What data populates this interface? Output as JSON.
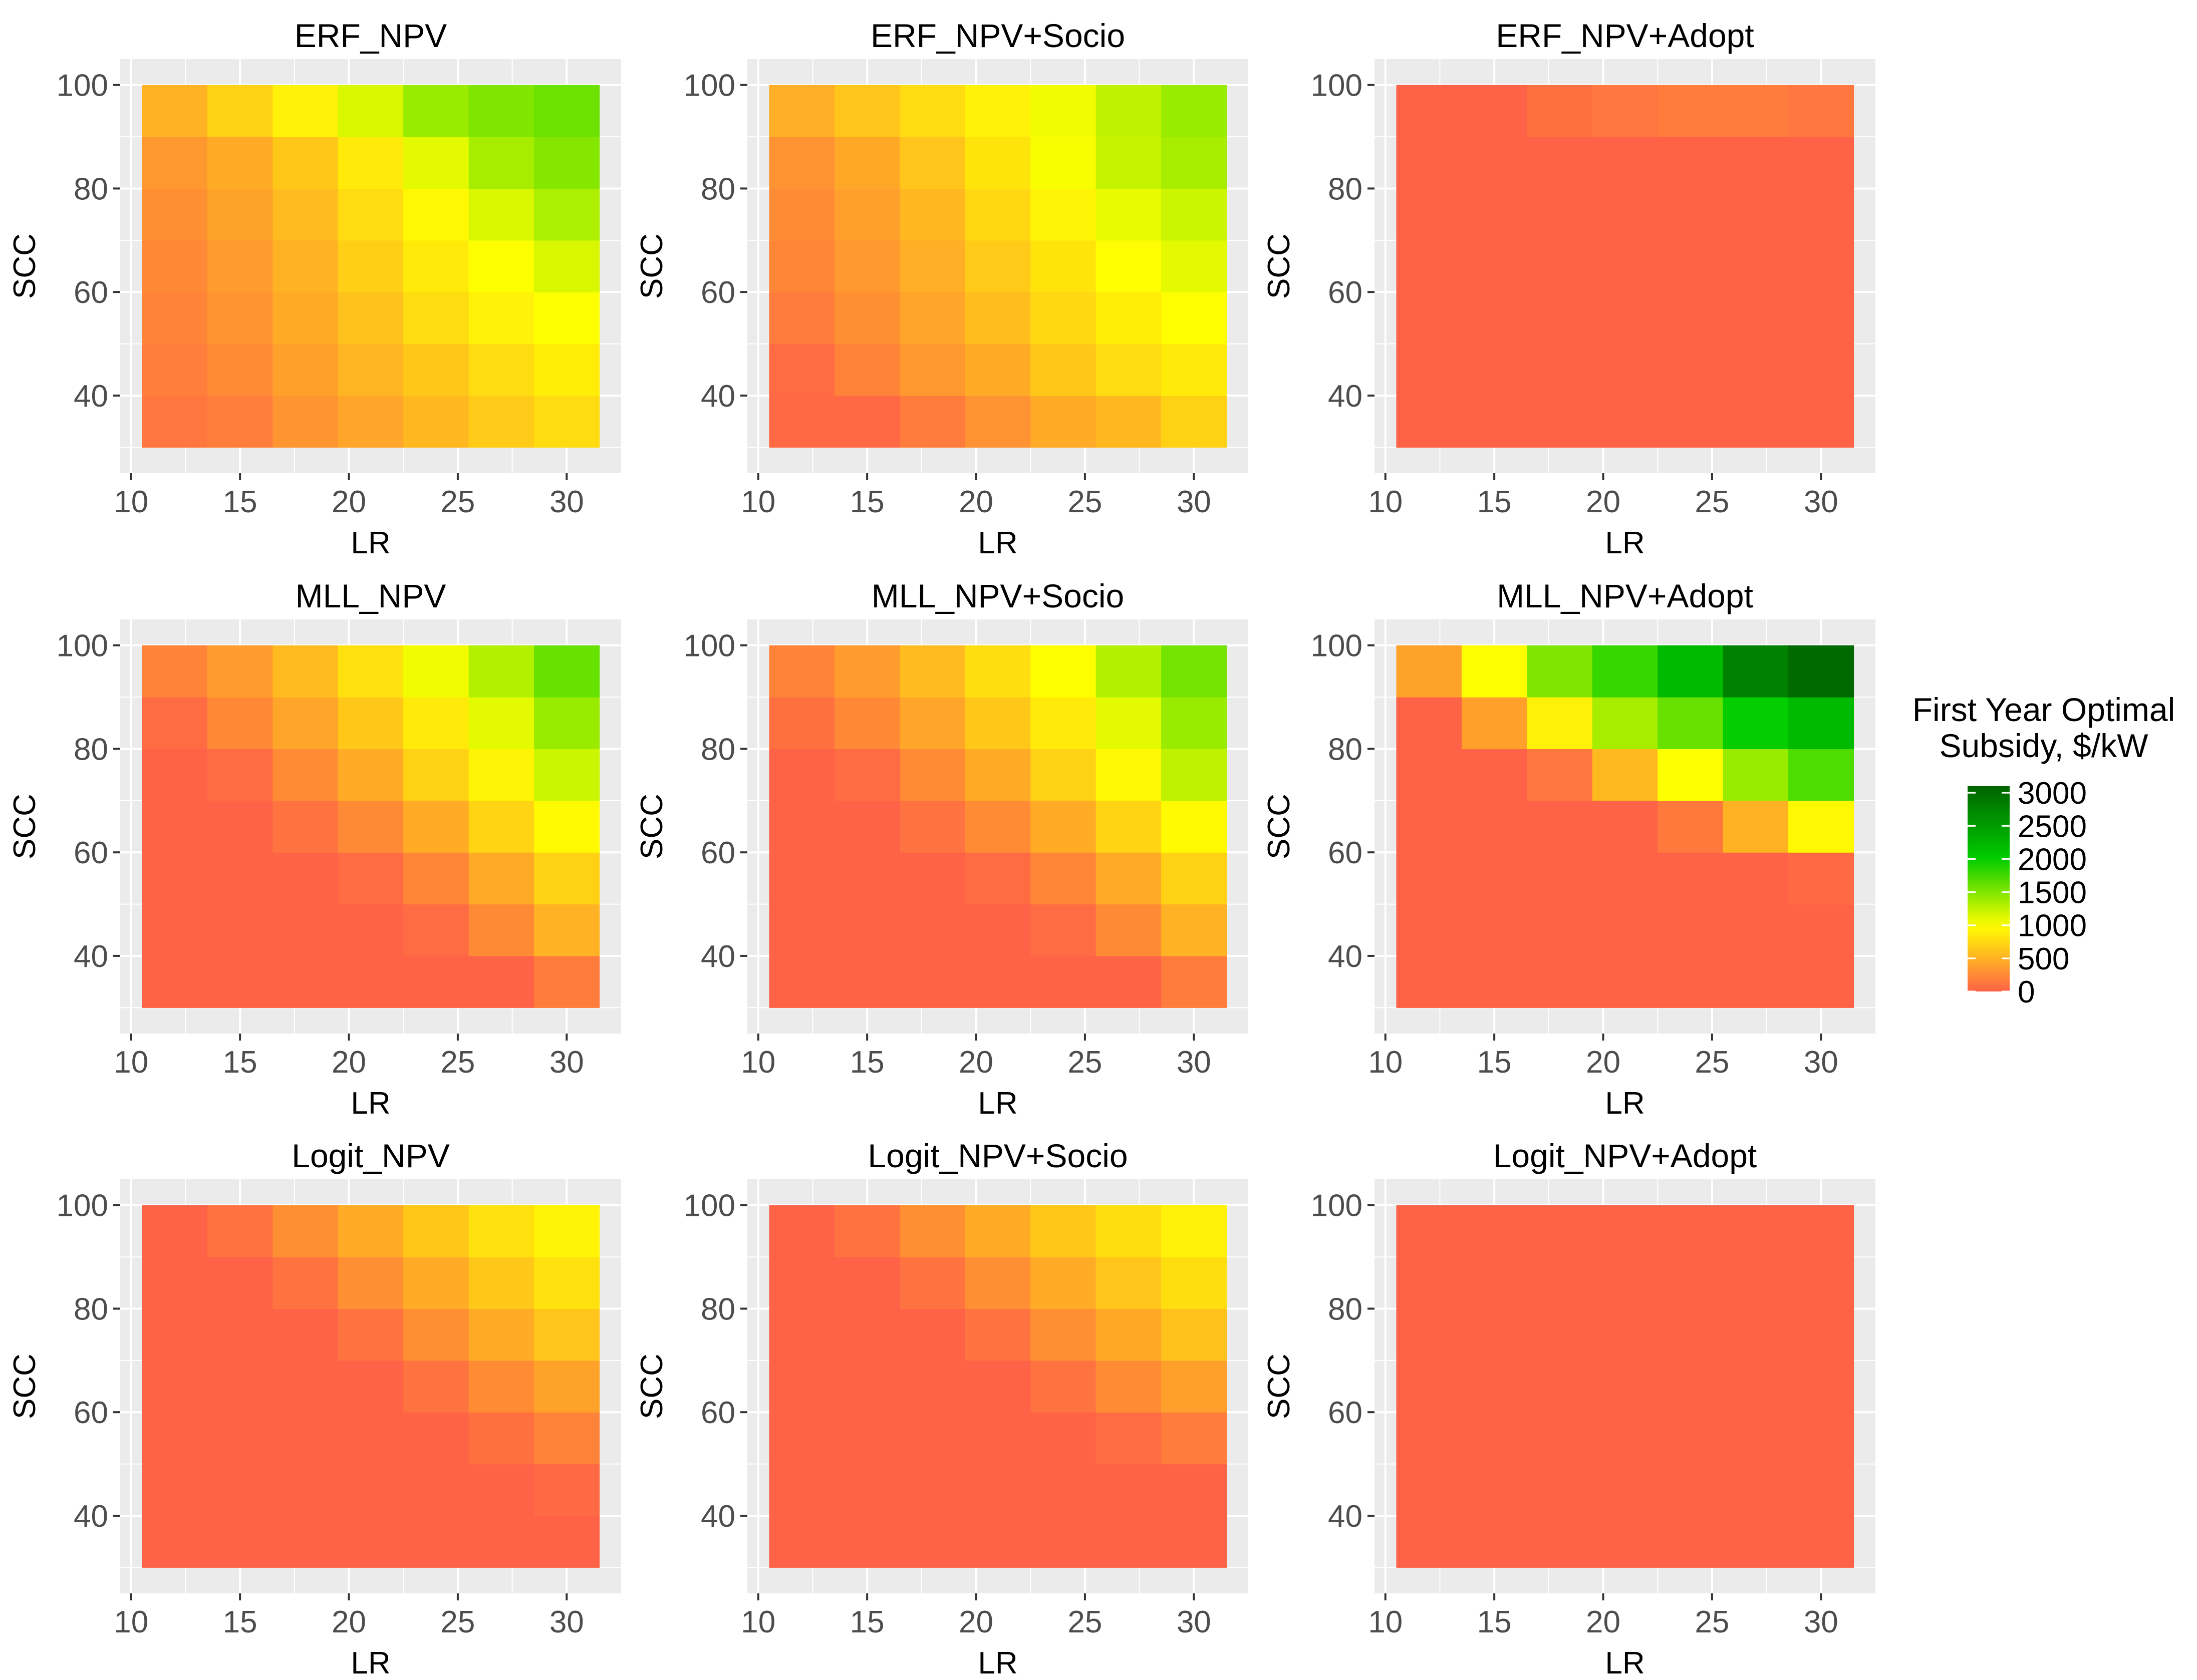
{
  "chart_data": {
    "type": "heatmap",
    "layout": "3x3 facet grid",
    "x_values": [
      12,
      15,
      18,
      21,
      24,
      27,
      30
    ],
    "y_values": [
      35,
      45,
      55,
      65,
      75,
      85,
      95
    ],
    "xlabel": "LR",
    "ylabel": "SCC",
    "x_ticks": [
      10,
      15,
      20,
      25,
      30
    ],
    "y_ticks": [
      40,
      60,
      80,
      100
    ],
    "xlim": [
      9.5,
      32.5
    ],
    "ylim": [
      25,
      105
    ],
    "legend": {
      "title_line1": "First Year Optimal",
      "title_line2": "Subsidy, $/kW",
      "ticks": [
        3000,
        2500,
        2000,
        1500,
        1000,
        500,
        0
      ],
      "min": 0,
      "max": 3100,
      "colors": [
        "#FF6347",
        "#FFFF00",
        "#00CC00",
        "#006400"
      ],
      "stops": [
        0,
        0.32,
        0.65,
        1.0
      ],
      "placement": "right"
    },
    "panels": [
      {
        "title": "ERF_NPV",
        "rows_low_to_high_scc": [
          [
            120,
            170,
            320,
            420,
            540,
            660,
            760
          ],
          [
            170,
            260,
            380,
            520,
            640,
            760,
            880
          ],
          [
            210,
            320,
            460,
            600,
            760,
            900,
            1000
          ],
          [
            240,
            360,
            500,
            680,
            860,
            1000,
            1150
          ],
          [
            280,
            400,
            560,
            760,
            950,
            1150,
            1320
          ],
          [
            340,
            460,
            640,
            860,
            1100,
            1350,
            1480
          ],
          [
            500,
            700,
            900,
            1150,
            1400,
            1500,
            1580
          ]
        ]
      },
      {
        "title": "ERF_NPV+Socio",
        "rows_low_to_high_scc": [
          [
            40,
            40,
            160,
            300,
            460,
            540,
            700
          ],
          [
            60,
            200,
            340,
            460,
            640,
            760,
            860
          ],
          [
            160,
            280,
            420,
            580,
            740,
            880,
            980
          ],
          [
            220,
            340,
            480,
            660,
            820,
            980,
            1100
          ],
          [
            260,
            380,
            540,
            740,
            920,
            1080,
            1200
          ],
          [
            300,
            440,
            620,
            820,
            1020,
            1220,
            1350
          ],
          [
            480,
            620,
            760,
            900,
            1050,
            1250,
            1400
          ]
        ]
      },
      {
        "title": "ERF_NPV+Adopt",
        "rows_low_to_high_scc": [
          [
            0,
            0,
            0,
            0,
            0,
            0,
            0
          ],
          [
            0,
            0,
            0,
            0,
            0,
            0,
            0
          ],
          [
            0,
            0,
            0,
            0,
            0,
            0,
            0
          ],
          [
            0,
            0,
            0,
            0,
            0,
            0,
            0
          ],
          [
            0,
            0,
            0,
            0,
            0,
            0,
            0
          ],
          [
            0,
            0,
            0,
            0,
            0,
            0,
            0
          ],
          [
            0,
            0,
            80,
            120,
            160,
            160,
            120
          ]
        ]
      },
      {
        "title": "MLL_NPV",
        "rows_low_to_high_scc": [
          [
            0,
            0,
            0,
            0,
            0,
            0,
            160
          ],
          [
            0,
            0,
            0,
            0,
            60,
            250,
            500
          ],
          [
            0,
            0,
            0,
            50,
            220,
            450,
            700
          ],
          [
            0,
            0,
            100,
            250,
            460,
            720,
            960
          ],
          [
            0,
            50,
            260,
            460,
            700,
            920,
            1200
          ],
          [
            60,
            240,
            420,
            640,
            860,
            1100,
            1400
          ],
          [
            200,
            360,
            560,
            800,
            1050,
            1300,
            1600
          ]
        ]
      },
      {
        "title": "MLL_NPV+Socio",
        "rows_low_to_high_scc": [
          [
            0,
            0,
            0,
            0,
            0,
            0,
            160
          ],
          [
            0,
            0,
            0,
            0,
            60,
            250,
            500
          ],
          [
            0,
            0,
            0,
            50,
            220,
            450,
            700
          ],
          [
            0,
            0,
            100,
            260,
            460,
            720,
            960
          ],
          [
            0,
            60,
            260,
            460,
            700,
            950,
            1250
          ],
          [
            80,
            240,
            420,
            640,
            860,
            1100,
            1400
          ],
          [
            200,
            360,
            560,
            780,
            1000,
            1300,
            1550
          ]
        ]
      },
      {
        "title": "MLL_NPV+Adopt",
        "rows_low_to_high_scc": [
          [
            0,
            0,
            0,
            0,
            0,
            0,
            0
          ],
          [
            0,
            0,
            0,
            0,
            0,
            0,
            0
          ],
          [
            0,
            0,
            0,
            0,
            0,
            0,
            40
          ],
          [
            0,
            0,
            0,
            0,
            140,
            500,
            950
          ],
          [
            0,
            0,
            120,
            550,
            1000,
            1400,
            1700
          ],
          [
            0,
            380,
            900,
            1350,
            1600,
            2000,
            2200
          ],
          [
            400,
            1000,
            1500,
            1800,
            2200,
            2800,
            3050
          ]
        ]
      },
      {
        "title": "Logit_NPV",
        "rows_low_to_high_scc": [
          [
            0,
            0,
            0,
            0,
            0,
            0,
            0
          ],
          [
            0,
            0,
            0,
            0,
            0,
            0,
            40
          ],
          [
            0,
            0,
            0,
            0,
            0,
            80,
            200
          ],
          [
            0,
            0,
            0,
            0,
            100,
            260,
            400
          ],
          [
            0,
            0,
            0,
            100,
            280,
            460,
            620
          ],
          [
            0,
            0,
            100,
            280,
            460,
            640,
            800
          ],
          [
            0,
            100,
            280,
            460,
            640,
            800,
            920
          ]
        ]
      },
      {
        "title": "Logit_NPV+Socio",
        "rows_low_to_high_scc": [
          [
            0,
            0,
            0,
            0,
            0,
            0,
            0
          ],
          [
            0,
            0,
            0,
            0,
            0,
            0,
            0
          ],
          [
            0,
            0,
            0,
            0,
            0,
            60,
            160
          ],
          [
            0,
            0,
            0,
            0,
            100,
            260,
            380
          ],
          [
            0,
            0,
            0,
            100,
            280,
            440,
            600
          ],
          [
            0,
            0,
            100,
            280,
            460,
            620,
            780
          ],
          [
            0,
            100,
            280,
            460,
            640,
            780,
            900
          ]
        ]
      },
      {
        "title": "Logit_NPV+Adopt",
        "rows_low_to_high_scc": [
          [
            0,
            0,
            0,
            0,
            0,
            0,
            0
          ],
          [
            0,
            0,
            0,
            0,
            0,
            0,
            0
          ],
          [
            0,
            0,
            0,
            0,
            0,
            0,
            0
          ],
          [
            0,
            0,
            0,
            0,
            0,
            0,
            0
          ],
          [
            0,
            0,
            0,
            0,
            0,
            0,
            0
          ],
          [
            0,
            0,
            0,
            0,
            0,
            0,
            0
          ],
          [
            0,
            0,
            0,
            0,
            0,
            0,
            0
          ]
        ]
      }
    ]
  }
}
